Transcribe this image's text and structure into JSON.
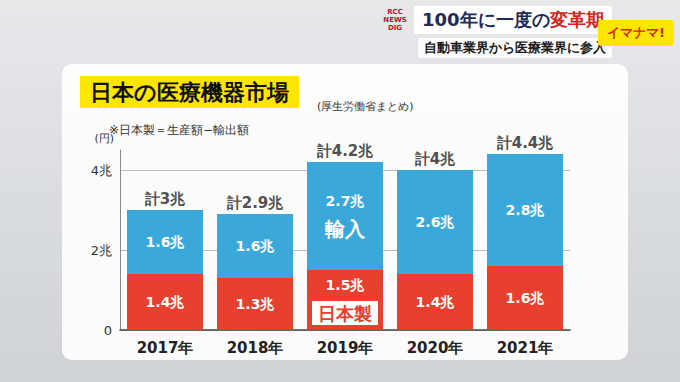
{
  "overlay": {
    "logo": "RCC NEWS DIG",
    "headline": [
      "100年に一度の",
      "変革期"
    ],
    "subheadline": "自動車業界から医療業界に参入",
    "program": "イマナマ!"
  },
  "chart_data": {
    "type": "bar",
    "stacked": true,
    "title": "日本の医療機器市場",
    "source": "(厚生労働省まとめ)",
    "note": "※日本製＝生産額−輸出額",
    "y_label": "(円)",
    "categories": [
      "2017年",
      "2018年",
      "2019年",
      "2020年",
      "2021年"
    ],
    "series": [
      {
        "name": "日本製",
        "color": "#e8402e",
        "values": [
          1.4,
          1.3,
          1.5,
          1.4,
          1.6
        ],
        "value_labels": [
          "1.4兆",
          "1.3兆",
          "1.5兆",
          "1.4兆",
          "1.6兆"
        ]
      },
      {
        "name": "輸入",
        "color": "#3ba8da",
        "values": [
          1.6,
          1.6,
          2.7,
          2.6,
          2.8
        ],
        "value_labels": [
          "1.6兆",
          "1.6兆",
          "2.7兆",
          "2.6兆",
          "2.8兆"
        ]
      }
    ],
    "totals": [
      3,
      2.9,
      4.2,
      4,
      4.4
    ],
    "total_labels": [
      "計3兆",
      "計2.9兆",
      "計4.2兆",
      "計4兆",
      "計4.4兆"
    ],
    "ylim": [
      0,
      4.5
    ],
    "yticks": [
      0,
      {
        "value": 2,
        "label": "2兆"
      },
      {
        "value": 4,
        "label": "4兆"
      }
    ],
    "grid": true,
    "data_labels": true
  }
}
